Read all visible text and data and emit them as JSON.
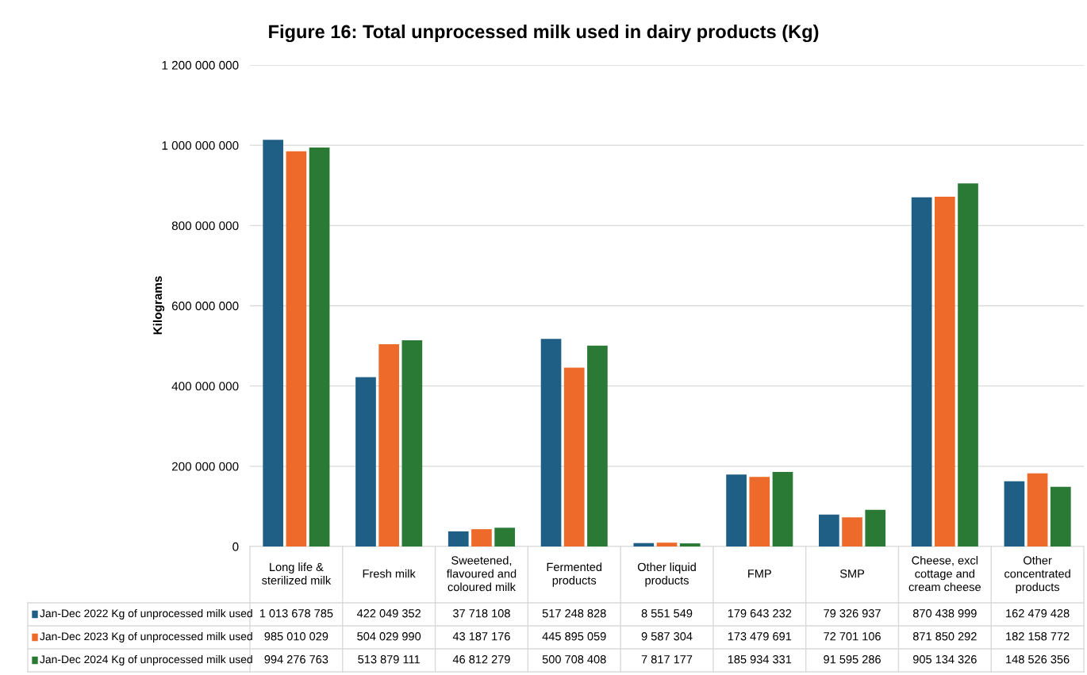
{
  "chart_data": {
    "type": "bar",
    "title": "Figure 16: Total unprocessed milk used in dairy products (Kg)",
    "ylabel": "Kilograms",
    "categories": [
      "Long life &\nsterilized milk",
      "Fresh milk",
      "Sweetened,\nflavoured and\ncoloured milk",
      "Fermented\nproducts",
      "Other liquid\nproducts",
      "FMP",
      "SMP",
      "Cheese, excl\ncottage and\ncream cheese",
      "Other\nconcentrated\nproducts"
    ],
    "series": [
      {
        "name": "Jan-Dec 2022 Kg of unprocessed milk used",
        "color": "#1f5f85",
        "values": [
          1013678785,
          422049352,
          37718108,
          517248828,
          8551549,
          179643232,
          79326937,
          870438999,
          162479428
        ]
      },
      {
        "name": "Jan-Dec 2023 Kg of unprocessed milk used",
        "color": "#ee6a2a",
        "values": [
          985010029,
          504029990,
          43187176,
          445895059,
          9587304,
          173479691,
          72701106,
          871850292,
          182158772
        ]
      },
      {
        "name": "Jan-Dec 2024 Kg of unprocessed milk used",
        "color": "#2a7a35",
        "values": [
          994276763,
          513879111,
          46812279,
          500708408,
          7817177,
          185934331,
          91595286,
          905134326,
          148526356
        ]
      }
    ],
    "ylim": [
      0,
      1200000000
    ],
    "yticks": [
      {
        "value": 0,
        "label": "0"
      },
      {
        "value": 200000000,
        "label": "200 000 000"
      },
      {
        "value": 400000000,
        "label": "400 000 000"
      },
      {
        "value": 600000000,
        "label": "600 000 000"
      },
      {
        "value": 800000000,
        "label": "800 000 000"
      },
      {
        "value": 1000000000,
        "label": "1 000 000 000"
      },
      {
        "value": 1200000000,
        "label": "1 200 000 000"
      }
    ],
    "grid": "y",
    "data_labels": true,
    "legend": "bottom"
  }
}
